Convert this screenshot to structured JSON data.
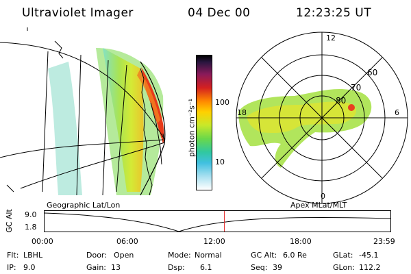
{
  "header": {
    "instrument": "Ultraviolet Imager",
    "date": "04 Dec 00",
    "time": "12:23:25 UT"
  },
  "colorbar": {
    "unit_label": "photon cm⁻²s⁻¹",
    "ticks": [
      "100",
      "10"
    ]
  },
  "geo_panel": {
    "label": "Geographic Lat/Lon"
  },
  "polar_panel": {
    "label": "Apex  MLat/MLT",
    "mlt_labels": [
      "12",
      "18",
      "6",
      "0"
    ],
    "lat_labels": [
      "60",
      "70",
      "80"
    ]
  },
  "timeline": {
    "axis_label": "GC Alt",
    "y_ticks": [
      "9.0",
      "1.8"
    ],
    "x_ticks": [
      "00:00",
      "06:00",
      "12:00",
      "18:00",
      "23:59"
    ],
    "current_fraction": 0.52
  },
  "info": {
    "row1": [
      {
        "label": "Flt:",
        "value": "LBHL"
      },
      {
        "label": "Door:",
        "value": "Open"
      },
      {
        "label": "Mode:",
        "value": "Normal"
      },
      {
        "label": "GC Alt:",
        "value": "6.0 Re"
      },
      {
        "label": "GLat:",
        "value": "-45.1"
      }
    ],
    "row2": [
      {
        "label": "IP:",
        "value": "9.0"
      },
      {
        "label": "Gain:",
        "value": "13"
      },
      {
        "label": "Dsp:",
        "value": "6.1"
      },
      {
        "label": "Seq:",
        "value": "39"
      },
      {
        "label": "GLon:",
        "value": "112.2"
      }
    ]
  }
}
